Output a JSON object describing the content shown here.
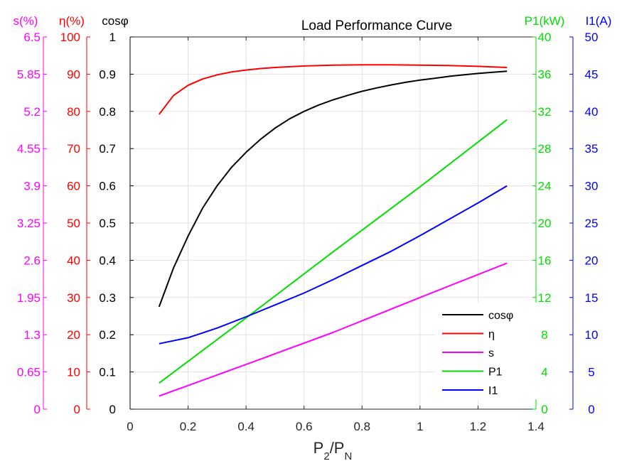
{
  "chart_data": {
    "type": "line",
    "title": "Load Performance Curve",
    "xlabel": {
      "main": "P",
      "sub1": "2",
      "slash": "/P",
      "sub2": "N"
    },
    "xlim": [
      0,
      1.4
    ],
    "x_ticks": [
      "0",
      "0.2",
      "0.4",
      "0.6",
      "0.8",
      "1",
      "1.2",
      "1.4"
    ],
    "grid": true,
    "legend_position": "bottom-right",
    "axes": [
      {
        "id": "s",
        "title": "s(%)",
        "side": "left",
        "color": "#ff00ff",
        "ylim": [
          0,
          6.5
        ],
        "ticks": [
          "0",
          "0.65",
          "1.3",
          "1.95",
          "2.6",
          "3.25",
          "3.9",
          "4.55",
          "5.2",
          "5.85",
          "6.5"
        ]
      },
      {
        "id": "eta",
        "title": "η(%)",
        "side": "left",
        "color": "#ff0000",
        "ylim": [
          0,
          100
        ],
        "ticks": [
          "0",
          "10",
          "20",
          "30",
          "40",
          "50",
          "60",
          "70",
          "80",
          "90",
          "100"
        ]
      },
      {
        "id": "cos",
        "title": "cosφ",
        "side": "left",
        "color": "#000000",
        "ylim": [
          0,
          1
        ],
        "ticks": [
          "0",
          "0.1",
          "0.2",
          "0.3",
          "0.4",
          "0.5",
          "0.6",
          "0.7",
          "0.8",
          "0.9",
          "1"
        ]
      },
      {
        "id": "p1",
        "title": "P1(kW)",
        "side": "right",
        "color": "#00dd00",
        "ylim": [
          0,
          40
        ],
        "ticks": [
          "0",
          "4",
          "8",
          "12",
          "16",
          "20",
          "24",
          "28",
          "32",
          "36",
          "40"
        ]
      },
      {
        "id": "i1",
        "title": "I1(A)",
        "side": "right",
        "color": "#0000ff",
        "ylim": [
          0,
          50
        ],
        "ticks": [
          "0",
          "5",
          "10",
          "15",
          "20",
          "25",
          "30",
          "35",
          "40",
          "45",
          "50"
        ]
      }
    ],
    "series": [
      {
        "name": "cosφ",
        "axis": "cos",
        "color": "#000000",
        "x": [
          0.1,
          0.15,
          0.2,
          0.25,
          0.3,
          0.35,
          0.4,
          0.45,
          0.5,
          0.55,
          0.6,
          0.65,
          0.7,
          0.75,
          0.8,
          0.85,
          0.9,
          0.95,
          1.0,
          1.05,
          1.1,
          1.15,
          1.2,
          1.25,
          1.3
        ],
        "y": [
          0.275,
          0.38,
          0.465,
          0.54,
          0.6,
          0.65,
          0.69,
          0.725,
          0.755,
          0.78,
          0.8,
          0.817,
          0.831,
          0.843,
          0.854,
          0.863,
          0.871,
          0.878,
          0.884,
          0.889,
          0.894,
          0.898,
          0.902,
          0.905,
          0.908
        ]
      },
      {
        "name": "η",
        "axis": "eta",
        "color": "#ff0000",
        "x": [
          0.1,
          0.15,
          0.2,
          0.25,
          0.3,
          0.35,
          0.4,
          0.45,
          0.5,
          0.6,
          0.7,
          0.8,
          0.9,
          1.0,
          1.1,
          1.2,
          1.3
        ],
        "y": [
          79.2,
          84.3,
          87.0,
          88.7,
          89.8,
          90.6,
          91.1,
          91.5,
          91.8,
          92.2,
          92.4,
          92.5,
          92.5,
          92.4,
          92.3,
          92.1,
          91.8
        ]
      },
      {
        "name": "s",
        "axis": "s",
        "color": "#ff00ff",
        "x": [
          0.1,
          0.4,
          0.7,
          1.0,
          1.3
        ],
        "y": [
          0.23,
          0.78,
          1.34,
          1.95,
          2.55
        ]
      },
      {
        "name": "P1",
        "axis": "p1",
        "color": "#00dd00",
        "x": [
          0.1,
          0.4,
          0.7,
          1.0,
          1.3
        ],
        "y": [
          2.8,
          9.8,
          16.9,
          23.9,
          31.1
        ]
      },
      {
        "name": "I1",
        "axis": "i1",
        "color": "#0000ff",
        "x": [
          0.1,
          0.2,
          0.3,
          0.4,
          0.5,
          0.6,
          0.7,
          0.8,
          0.9,
          1.0,
          1.1,
          1.2,
          1.3
        ],
        "y": [
          8.8,
          9.6,
          10.9,
          12.4,
          14.0,
          15.6,
          17.4,
          19.3,
          21.2,
          23.3,
          25.5,
          27.7,
          30.0
        ]
      }
    ]
  }
}
